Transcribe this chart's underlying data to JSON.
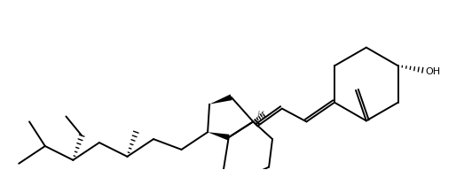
{
  "bg_color": "#ffffff",
  "line_color": "#000000",
  "lw": 1.4,
  "blw": 4.0,
  "figsize": [
    5.32,
    1.92
  ],
  "dpi": 100
}
